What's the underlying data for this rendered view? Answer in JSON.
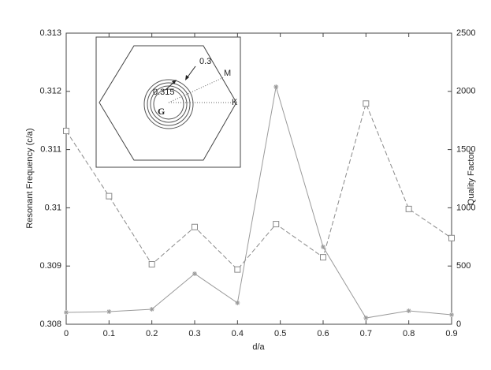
{
  "chart_data": {
    "type": "line",
    "xlabel": "d/a",
    "ylabel": "Resonant Frequency (c/a)",
    "y2label": "Quality Factor",
    "x": [
      0,
      0.1,
      0.2,
      0.3,
      0.4,
      0.49,
      0.6,
      0.7,
      0.8,
      0.9
    ],
    "xlim": [
      0,
      0.9
    ],
    "xticks": [
      0,
      0.1,
      0.2,
      0.3,
      0.4,
      0.5,
      0.6,
      0.7,
      0.8,
      0.9
    ],
    "ylim": [
      0.308,
      0.313
    ],
    "yticks": [
      0.308,
      0.309,
      0.31,
      0.311,
      0.312,
      0.313
    ],
    "y2lim": [
      0,
      2500
    ],
    "y2ticks": [
      0,
      500,
      1000,
      1500,
      2000,
      2500
    ],
    "series": [
      {
        "color": "#8a8a8a",
        "style": "dashed",
        "marker": "square",
        "values": [
          0.31132,
          0.3102,
          0.30903,
          0.30967,
          0.30894,
          0.30972,
          0.30915,
          0.31179,
          0.30998,
          0.30948
        ]
      },
      {
        "color": "#9a9a9a",
        "style": "solid",
        "marker": "star",
        "axis": "y2",
        "values": [
          102,
          108,
          129,
          434,
          183,
          2039,
          664,
          54,
          115,
          81
        ]
      }
    ],
    "inset": {
      "labels": [
        "0.3",
        "0.315",
        "G",
        "M",
        "K"
      ]
    }
  }
}
